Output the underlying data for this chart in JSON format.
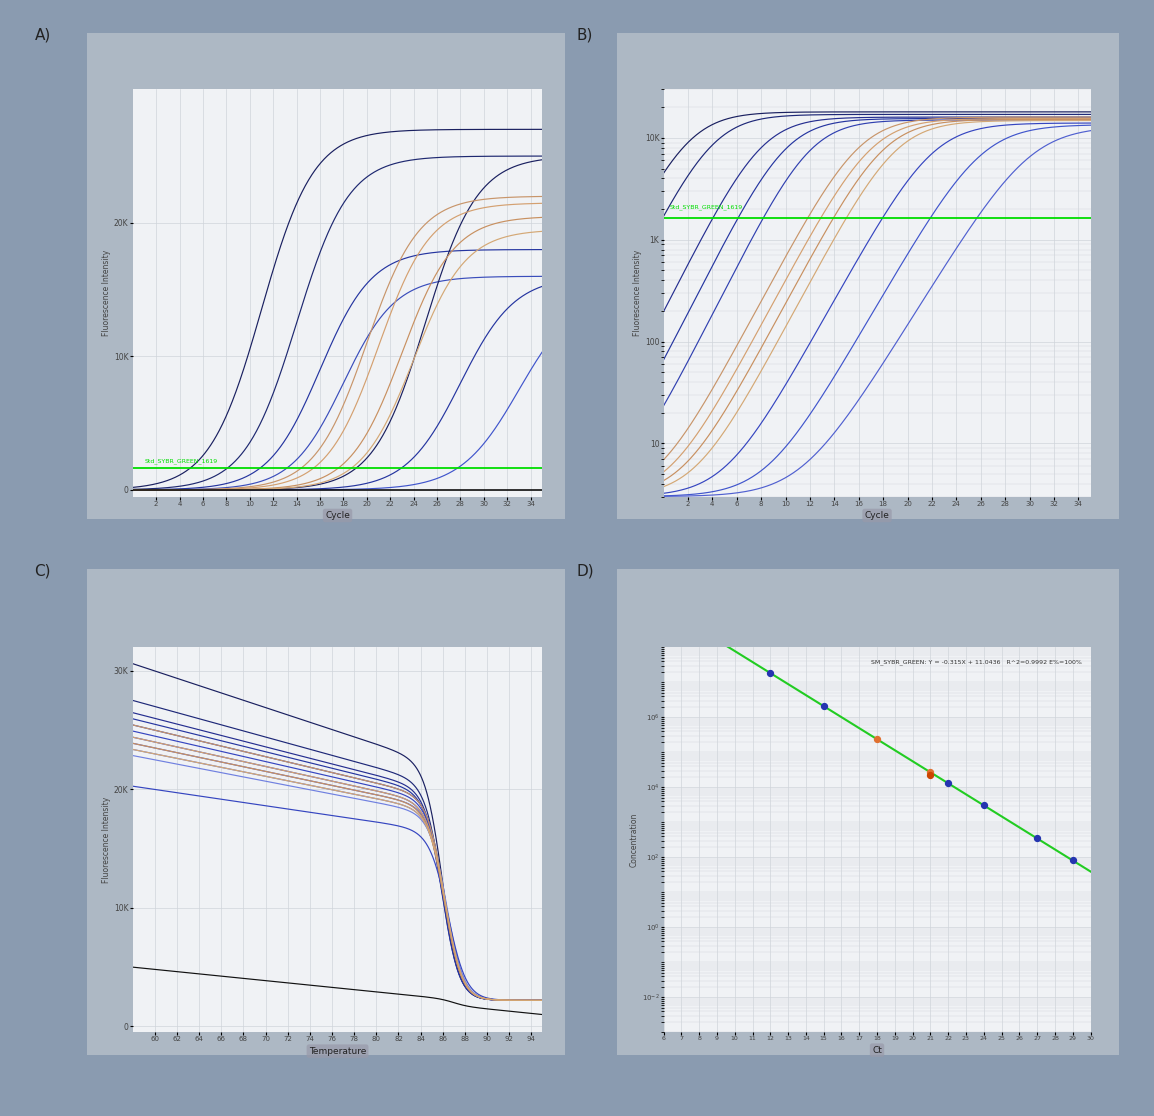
{
  "fig_bg": "#8a9bb0",
  "plot_bg": "#f0f2f5",
  "grid_color": "#d0d4da",
  "threshold_color": "#00dd00",
  "threshold_label_A": "Std_SYBR_GREEN_1619",
  "threshold_label_B": "Std_SYBR_GREEN_1619",
  "xlabel_cycle": "Cycle",
  "xlabel_temp": "Temperature",
  "xlabel_ct": "Ct",
  "ylabel_fi": "Fluorescence Intensity",
  "ylabel_conc": "Concentration",
  "panel_border_color": "#6a7d94",
  "panel_inner_bg": "#adb8c4",
  "A_ylim": [
    -500,
    30000
  ],
  "A_threshold": 1619,
  "A_xlim": [
    0,
    35
  ],
  "A_xticks": [
    2,
    4,
    6,
    8,
    10,
    12,
    14,
    16,
    18,
    20,
    22,
    24,
    26,
    28,
    30,
    32,
    34
  ],
  "B_xlim": [
    0,
    35
  ],
  "B_xticks": [
    2,
    4,
    6,
    8,
    10,
    12,
    14,
    16,
    18,
    20,
    22,
    24,
    26,
    28,
    30,
    32,
    34
  ],
  "B_threshold": 1619,
  "C_ylim": [
    -500,
    32000
  ],
  "C_xlim": [
    58,
    95
  ],
  "C_xticks": [
    60,
    62,
    64,
    66,
    68,
    70,
    72,
    74,
    76,
    78,
    80,
    82,
    84,
    86,
    88,
    90,
    92,
    94
  ],
  "D_annotation": "SM_SYBR_GREEN: Y = -0.315X + 11.0436   R^2=0.9992 E%=100%",
  "D_xlim": [
    6,
    30
  ],
  "D_xticks": [
    6,
    7,
    8,
    9,
    10,
    11,
    12,
    13,
    14,
    15,
    16,
    17,
    18,
    19,
    20,
    21,
    22,
    23,
    24,
    25,
    26,
    27,
    28,
    29,
    30
  ]
}
